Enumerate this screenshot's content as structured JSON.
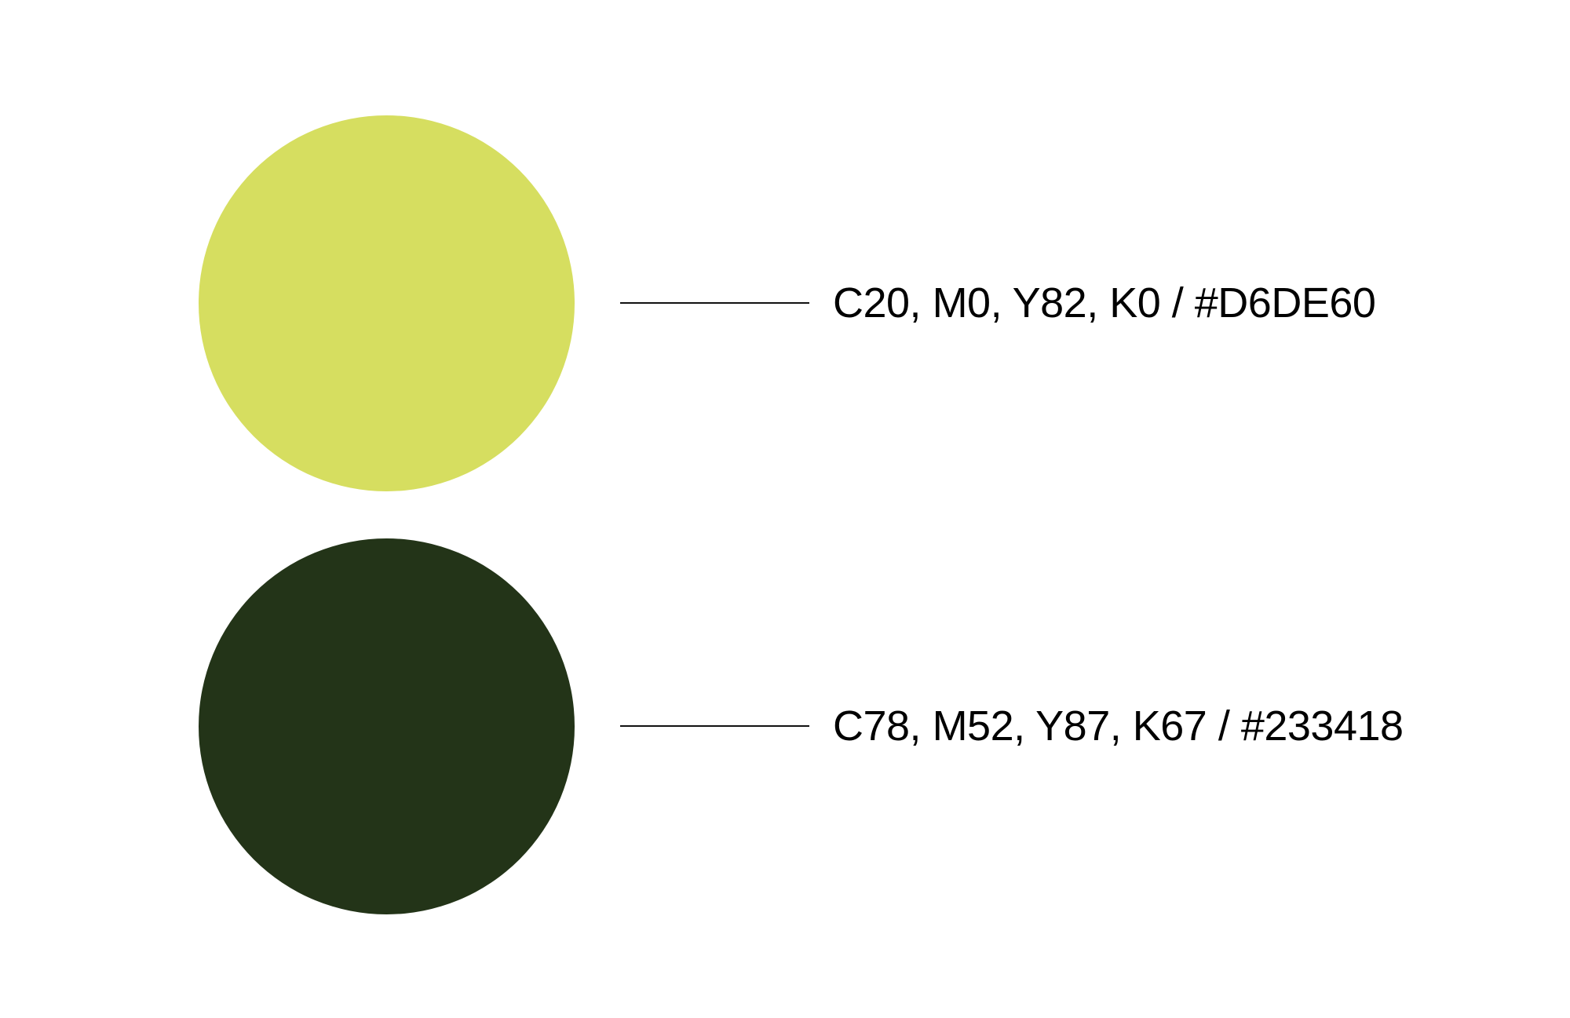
{
  "swatches": [
    {
      "label": "C20, M0, Y82, K0 / #D6DE60",
      "color": "#D6DE60"
    },
    {
      "label": "C78, M52, Y87, K67 / #233418",
      "color": "#233418"
    }
  ]
}
